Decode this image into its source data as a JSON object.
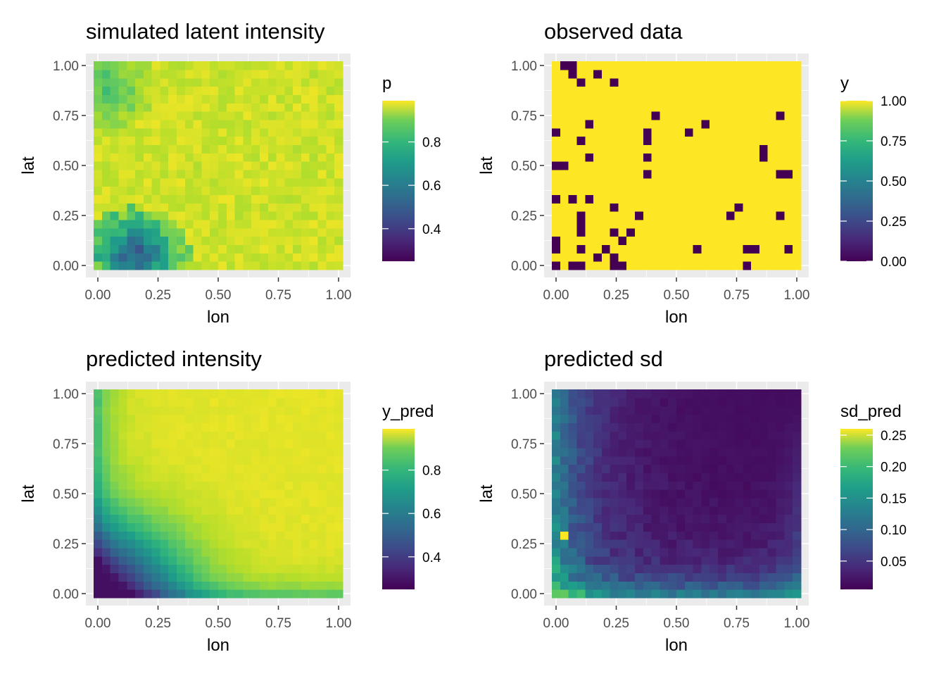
{
  "panels": [
    {
      "title": "simulated latent intensity",
      "xlabel": "lon",
      "ylabel": "lat",
      "x_ticks": [
        "0.00",
        "0.25",
        "0.50",
        "0.75",
        "1.00"
      ],
      "y_ticks": [
        "0.00",
        "0.25",
        "0.50",
        "0.75",
        "1.00"
      ],
      "legend": {
        "title": "p",
        "labels": [
          "0.8",
          "0.6",
          "0.4"
        ]
      }
    },
    {
      "title": "observed data",
      "xlabel": "lon",
      "ylabel": "lat",
      "x_ticks": [
        "0.00",
        "0.25",
        "0.50",
        "0.75",
        "1.00"
      ],
      "y_ticks": [
        "0.00",
        "0.25",
        "0.50",
        "0.75",
        "1.00"
      ],
      "legend": {
        "title": "y",
        "labels": [
          "1.00",
          "0.75",
          "0.50",
          "0.25",
          "0.00"
        ]
      }
    },
    {
      "title": "predicted intensity",
      "xlabel": "lon",
      "ylabel": "lat",
      "x_ticks": [
        "0.00",
        "0.25",
        "0.50",
        "0.75",
        "1.00"
      ],
      "y_ticks": [
        "0.00",
        "0.25",
        "0.50",
        "0.75",
        "1.00"
      ],
      "legend": {
        "title": "y_pred",
        "labels": [
          "0.8",
          "0.6",
          "0.4"
        ]
      }
    },
    {
      "title": "predicted sd",
      "xlabel": "lon",
      "ylabel": "lat",
      "x_ticks": [
        "0.00",
        "0.25",
        "0.50",
        "0.75",
        "1.00"
      ],
      "y_ticks": [
        "0.00",
        "0.25",
        "0.50",
        "0.75",
        "1.00"
      ],
      "legend": {
        "title": "sd_pred",
        "labels": [
          "0.25",
          "0.20",
          "0.15",
          "0.10",
          "0.05"
        ]
      }
    }
  ],
  "chart_data": [
    {
      "type": "heatmap",
      "title": "simulated latent intensity",
      "xlabel": "lon",
      "ylabel": "lat",
      "xlim": [
        0,
        1
      ],
      "ylim": [
        0,
        1
      ],
      "grid_size": [
        30,
        25
      ],
      "field": "p",
      "colorscale": "viridis",
      "value_range": [
        0.25,
        0.99
      ],
      "legend_ticks": [
        0.8,
        0.6,
        0.4
      ],
      "pattern": "values near 0.97 across most of the field; lower values (about 0.55-0.8) in a blob near lon 0.1-0.2, lat 0-0.2 and moderately lower (about 0.85) near lon 0-0.1, lat 0.8-1.0",
      "grid": true
    },
    {
      "type": "heatmap",
      "title": "observed data",
      "xlabel": "lon",
      "ylabel": "lat",
      "xlim": [
        0,
        1
      ],
      "ylim": [
        0,
        1
      ],
      "grid_size": [
        30,
        25
      ],
      "field": "y",
      "colorscale": "viridis",
      "value_range": [
        0,
        1
      ],
      "legend_ticks": [
        1.0,
        0.75,
        0.5,
        0.25,
        0.0
      ],
      "zero_cells": [
        [
          0.0,
          0.0
        ],
        [
          0.07,
          0.0
        ],
        [
          0.1,
          0.0
        ],
        [
          0.24,
          0.0
        ],
        [
          0.28,
          0.0
        ],
        [
          0.79,
          0.0
        ],
        [
          0.0,
          0.1
        ],
        [
          0.0,
          0.13
        ],
        [
          0.1,
          0.07
        ],
        [
          0.17,
          0.03
        ],
        [
          0.24,
          0.03
        ],
        [
          0.2,
          0.1
        ],
        [
          0.59,
          0.1
        ],
        [
          0.79,
          0.07
        ],
        [
          0.83,
          0.07
        ],
        [
          0.97,
          0.1
        ],
        [
          0.24,
          0.17
        ],
        [
          0.1,
          0.17
        ],
        [
          0.31,
          0.17
        ],
        [
          0.28,
          0.13
        ],
        [
          0.1,
          0.2
        ],
        [
          0.1,
          0.24
        ],
        [
          0.34,
          0.24
        ],
        [
          0.72,
          0.24
        ],
        [
          0.93,
          0.27
        ],
        [
          0.24,
          0.31
        ],
        [
          0.76,
          0.31
        ],
        [
          0.0,
          0.34
        ],
        [
          0.07,
          0.34
        ],
        [
          0.14,
          0.34
        ],
        [
          0.93,
          0.45
        ],
        [
          0.97,
          0.45
        ],
        [
          0.38,
          0.45
        ],
        [
          0.03,
          0.48
        ],
        [
          0.0,
          0.52
        ],
        [
          0.14,
          0.55
        ],
        [
          0.38,
          0.55
        ],
        [
          0.86,
          0.55
        ],
        [
          0.86,
          0.59
        ],
        [
          0.1,
          0.62
        ],
        [
          0.38,
          0.62
        ],
        [
          0.0,
          0.66
        ],
        [
          0.55,
          0.66
        ],
        [
          0.38,
          0.66
        ],
        [
          0.14,
          0.69
        ],
        [
          0.62,
          0.72
        ],
        [
          0.41,
          0.76
        ],
        [
          0.93,
          0.76
        ],
        [
          0.24,
          0.9
        ],
        [
          0.1,
          0.93
        ],
        [
          0.17,
          0.97
        ],
        [
          0.07,
          0.97
        ],
        [
          0.03,
          1.0
        ],
        [
          0.07,
          1.0
        ]
      ],
      "grid": true
    },
    {
      "type": "heatmap",
      "title": "predicted intensity",
      "xlabel": "lon",
      "ylabel": "lat",
      "xlim": [
        0,
        1
      ],
      "ylim": [
        0,
        1
      ],
      "grid_size": [
        30,
        25
      ],
      "field": "y_pred",
      "colorscale": "viridis",
      "value_range": [
        0.25,
        0.99
      ],
      "legend_ticks": [
        0.8,
        0.6,
        0.4
      ],
      "pattern": "smooth field near 0.97 in the upper right interior, decreasing toward the left edge and bottom edge, with the minimum (about 0.3) at the lower-left corner",
      "grid": true
    },
    {
      "type": "heatmap",
      "title": "predicted sd",
      "xlabel": "lon",
      "ylabel": "lat",
      "xlim": [
        0,
        1
      ],
      "ylim": [
        0,
        1
      ],
      "grid_size": [
        30,
        25
      ],
      "field": "sd_pred",
      "colorscale": "viridis",
      "value_range": [
        0.005,
        0.26
      ],
      "legend_ticks": [
        0.25,
        0.2,
        0.15,
        0.1,
        0.05
      ],
      "pattern": "near 0.01 in the upper right interior, rising toward the left and bottom edges; bright cells (up to about 0.26) along the left edge and lower-left corner",
      "grid": true
    }
  ],
  "colors": {
    "panel_background": "#ebebeb",
    "grid_line": "#ffffff",
    "tick_text": "#4d4d4d",
    "viridis_low": "#440154",
    "viridis_mid": "#21918c",
    "viridis_high": "#fde725"
  }
}
